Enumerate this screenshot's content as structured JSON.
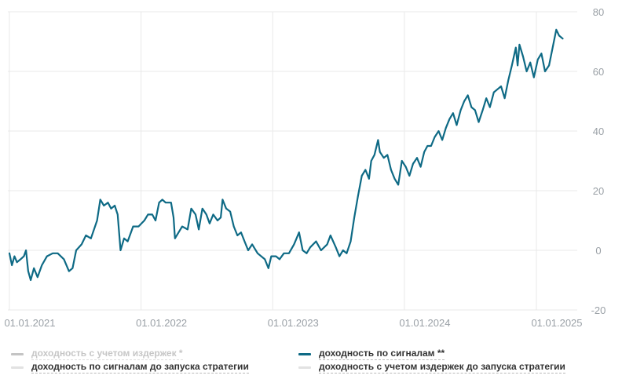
{
  "chart_data": {
    "type": "line",
    "title": "",
    "xlabel": "",
    "ylabel": "",
    "ylim": [
      -20,
      80
    ],
    "y_ticks": [
      80,
      60,
      40,
      20,
      0,
      -20
    ],
    "x_tick_labels": [
      "01.01.2021",
      "01.01.2022",
      "01.01.2023",
      "01.01.2024",
      "01.01.2025"
    ],
    "x_tick_dates": [
      "2021-01-01",
      "2022-01-01",
      "2023-01-01",
      "2024-01-01",
      "2025-01-01"
    ],
    "xlim": [
      "2021-01-01",
      "2025-04-15"
    ],
    "grid": true,
    "y_axis_position": "right",
    "legend_position": "bottom",
    "series": [
      {
        "name": "доходность по сигналам **",
        "color": "#0e6a85",
        "points": [
          [
            "2021-01-01",
            -1
          ],
          [
            "2021-01-08",
            -5
          ],
          [
            "2021-01-15",
            -2
          ],
          [
            "2021-01-22",
            -4
          ],
          [
            "2021-02-01",
            -3
          ],
          [
            "2021-02-10",
            -2
          ],
          [
            "2021-02-16",
            0
          ],
          [
            "2021-02-22",
            -7
          ],
          [
            "2021-03-01",
            -10
          ],
          [
            "2021-03-10",
            -6
          ],
          [
            "2021-03-20",
            -9
          ],
          [
            "2021-04-01",
            -5
          ],
          [
            "2021-04-15",
            -2
          ],
          [
            "2021-05-01",
            -1
          ],
          [
            "2021-05-15",
            -1
          ],
          [
            "2021-06-01",
            -3
          ],
          [
            "2021-06-15",
            -7
          ],
          [
            "2021-06-25",
            -6
          ],
          [
            "2021-07-05",
            0
          ],
          [
            "2021-07-20",
            2
          ],
          [
            "2021-08-01",
            5
          ],
          [
            "2021-08-15",
            4
          ],
          [
            "2021-09-01",
            10
          ],
          [
            "2021-09-10",
            17
          ],
          [
            "2021-09-20",
            15
          ],
          [
            "2021-10-01",
            16
          ],
          [
            "2021-10-10",
            14
          ],
          [
            "2021-10-20",
            15
          ],
          [
            "2021-10-28",
            12
          ],
          [
            "2021-11-05",
            0
          ],
          [
            "2021-11-15",
            4
          ],
          [
            "2021-11-25",
            3
          ],
          [
            "2021-12-10",
            8
          ],
          [
            "2021-12-25",
            8
          ],
          [
            "2022-01-10",
            10
          ],
          [
            "2022-01-20",
            12
          ],
          [
            "2022-02-01",
            12
          ],
          [
            "2022-02-10",
            10
          ],
          [
            "2022-02-20",
            16
          ],
          [
            "2022-03-01",
            17
          ],
          [
            "2022-03-10",
            16
          ],
          [
            "2022-03-25",
            16
          ],
          [
            "2022-04-01",
            11
          ],
          [
            "2022-04-05",
            4
          ],
          [
            "2022-04-15",
            6
          ],
          [
            "2022-04-25",
            8
          ],
          [
            "2022-05-10",
            7
          ],
          [
            "2022-05-20",
            14
          ],
          [
            "2022-06-01",
            12
          ],
          [
            "2022-06-10",
            7
          ],
          [
            "2022-06-20",
            14
          ],
          [
            "2022-07-01",
            12
          ],
          [
            "2022-07-10",
            9
          ],
          [
            "2022-07-20",
            12
          ],
          [
            "2022-08-01",
            10
          ],
          [
            "2022-08-10",
            11
          ],
          [
            "2022-08-15",
            17
          ],
          [
            "2022-08-25",
            14
          ],
          [
            "2022-09-05",
            13
          ],
          [
            "2022-09-15",
            8
          ],
          [
            "2022-09-25",
            5
          ],
          [
            "2022-10-05",
            6
          ],
          [
            "2022-10-15",
            3
          ],
          [
            "2022-10-25",
            0
          ],
          [
            "2022-11-05",
            2
          ],
          [
            "2022-11-20",
            -1
          ],
          [
            "2022-12-10",
            -3
          ],
          [
            "2022-12-20",
            -6
          ],
          [
            "2022-12-28",
            -2
          ],
          [
            "2023-01-10",
            -2
          ],
          [
            "2023-01-20",
            -3
          ],
          [
            "2023-02-01",
            -1
          ],
          [
            "2023-02-15",
            -1
          ],
          [
            "2023-03-01",
            2
          ],
          [
            "2023-03-15",
            6
          ],
          [
            "2023-03-25",
            0
          ],
          [
            "2023-04-05",
            -1
          ],
          [
            "2023-04-15",
            1
          ],
          [
            "2023-05-01",
            3
          ],
          [
            "2023-05-15",
            0
          ],
          [
            "2023-06-01",
            2
          ],
          [
            "2023-06-10",
            5
          ],
          [
            "2023-06-25",
            1
          ],
          [
            "2023-07-05",
            -2
          ],
          [
            "2023-07-15",
            0
          ],
          [
            "2023-07-25",
            -1
          ],
          [
            "2023-08-05",
            3
          ],
          [
            "2023-08-15",
            11
          ],
          [
            "2023-08-25",
            18
          ],
          [
            "2023-09-05",
            25
          ],
          [
            "2023-09-15",
            27
          ],
          [
            "2023-09-25",
            24
          ],
          [
            "2023-10-01",
            30
          ],
          [
            "2023-10-10",
            32
          ],
          [
            "2023-10-20",
            37
          ],
          [
            "2023-10-25",
            33
          ],
          [
            "2023-11-05",
            31
          ],
          [
            "2023-11-15",
            32
          ],
          [
            "2023-11-25",
            27
          ],
          [
            "2023-12-05",
            24
          ],
          [
            "2023-12-15",
            22
          ],
          [
            "2023-12-25",
            30
          ],
          [
            "2024-01-05",
            28
          ],
          [
            "2024-01-15",
            25
          ],
          [
            "2024-01-25",
            29
          ],
          [
            "2024-02-05",
            31
          ],
          [
            "2024-02-15",
            28
          ],
          [
            "2024-02-25",
            33
          ],
          [
            "2024-03-05",
            35
          ],
          [
            "2024-03-15",
            35
          ],
          [
            "2024-03-25",
            38
          ],
          [
            "2024-04-05",
            40
          ],
          [
            "2024-04-15",
            37
          ],
          [
            "2024-04-25",
            41
          ],
          [
            "2024-05-05",
            44
          ],
          [
            "2024-05-15",
            46
          ],
          [
            "2024-05-25",
            42
          ],
          [
            "2024-06-05",
            47
          ],
          [
            "2024-06-15",
            50
          ],
          [
            "2024-06-25",
            52
          ],
          [
            "2024-07-05",
            48
          ],
          [
            "2024-07-15",
            47
          ],
          [
            "2024-07-25",
            43
          ],
          [
            "2024-08-05",
            47
          ],
          [
            "2024-08-15",
            51
          ],
          [
            "2024-08-25",
            48
          ],
          [
            "2024-09-05",
            53
          ],
          [
            "2024-09-15",
            54
          ],
          [
            "2024-09-25",
            55
          ],
          [
            "2024-10-05",
            51
          ],
          [
            "2024-10-15",
            57
          ],
          [
            "2024-10-25",
            62
          ],
          [
            "2024-11-05",
            68
          ],
          [
            "2024-11-10",
            62
          ],
          [
            "2024-11-15",
            69
          ],
          [
            "2024-11-25",
            65
          ],
          [
            "2024-12-05",
            60
          ],
          [
            "2024-12-15",
            63
          ],
          [
            "2024-12-25",
            58
          ],
          [
            "2025-01-05",
            64
          ],
          [
            "2025-01-15",
            66
          ],
          [
            "2025-01-25",
            60
          ],
          [
            "2025-02-05",
            62
          ],
          [
            "2025-02-15",
            68
          ],
          [
            "2025-02-25",
            74
          ],
          [
            "2025-03-05",
            72
          ],
          [
            "2025-03-15",
            71
          ]
        ]
      },
      {
        "name": "доходность с учетом издержек *",
        "color": "#d9d9d9",
        "points": []
      },
      {
        "name": "доходность по сигналам до запуска стратегии",
        "color": "#d9d9d9",
        "points": []
      },
      {
        "name": "доходность с учетом издержек до запуска стратегии",
        "color": "#d9d9d9",
        "points": []
      }
    ]
  },
  "legend": {
    "items": [
      {
        "label": "доходность с учетом издержек *",
        "color": "#c4c4c4",
        "dim": true
      },
      {
        "label": "доходность по сигналам **",
        "color": "#0e6a85",
        "dim": false
      },
      {
        "label": "доходность по сигналам до запуска стратегии",
        "color": "#e2e2e2",
        "dim": false
      },
      {
        "label": "доходность с учетом издержек до запуска стратегии",
        "color": "#e2e2e2",
        "dim": false
      }
    ]
  }
}
